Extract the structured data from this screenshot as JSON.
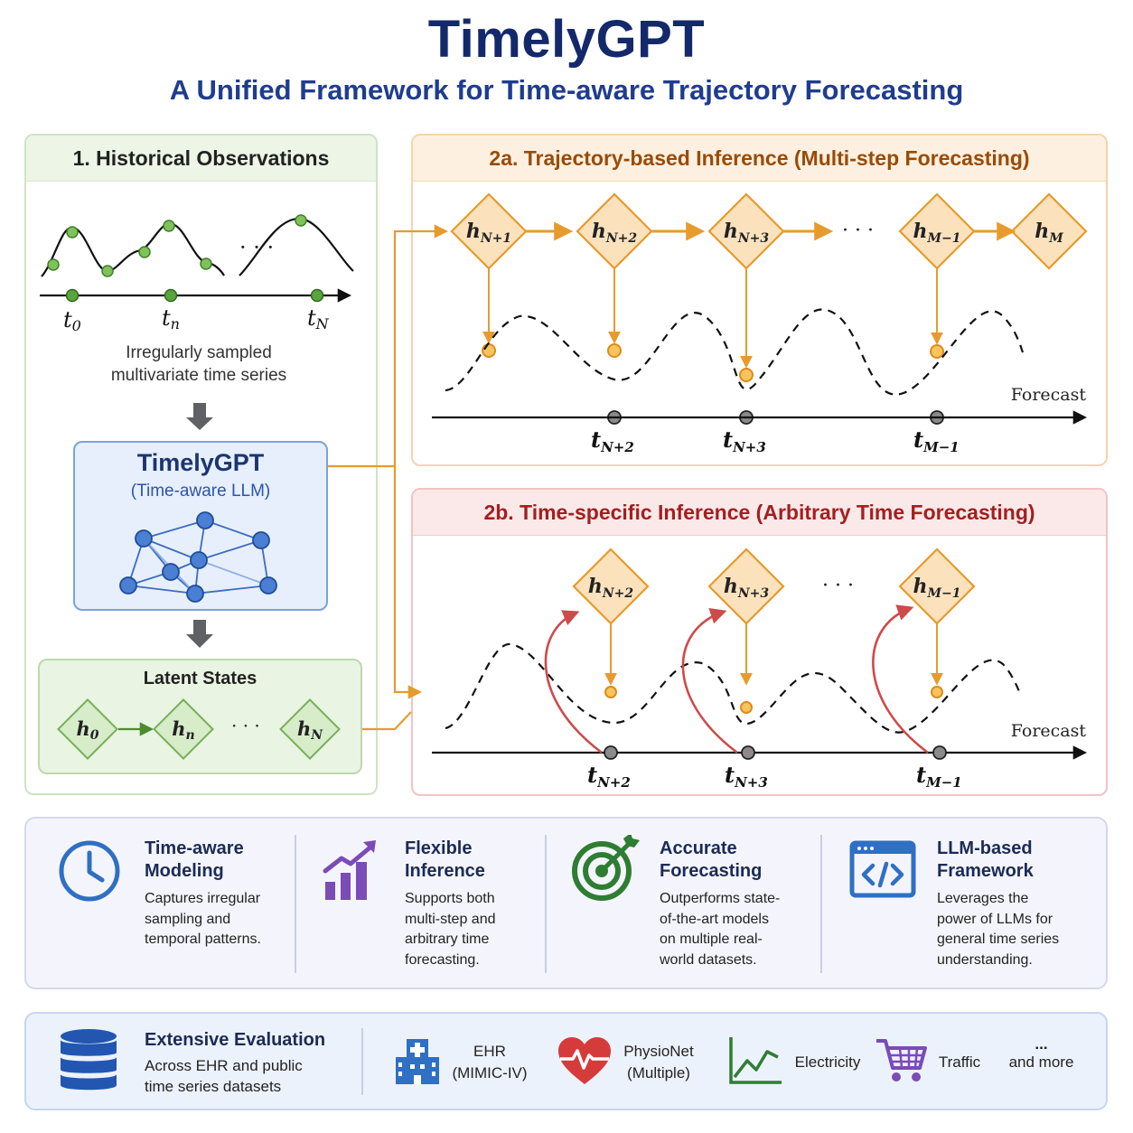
{
  "header": {
    "title": "TimelyGPT",
    "subtitle": "A Unified Framework for Time-aware Trajectory Forecasting"
  },
  "historical": {
    "heading": "1. Historical Observations",
    "ellipsis": "· · ·",
    "ticks": [
      {
        "base": "t",
        "sub": "0"
      },
      {
        "base": "t",
        "sub": "n"
      },
      {
        "base": "t",
        "sub": "N"
      }
    ],
    "caption_line1": "Irregularly sampled",
    "caption_line2": "multivariate time series"
  },
  "model": {
    "name": "TimelyGPT",
    "subtitle": "(Time-aware LLM)"
  },
  "latent": {
    "heading": "Latent States",
    "states": [
      {
        "base": "h",
        "sub": "0"
      },
      {
        "base": "h",
        "sub": "n"
      },
      {
        "base": "h",
        "sub": "N"
      }
    ],
    "ellipsis": "· · ·"
  },
  "trajectory": {
    "heading": "2a. Trajectory-based Inference (Multi-step Forecasting)",
    "states": [
      {
        "base": "h",
        "sub": "N+1"
      },
      {
        "base": "h",
        "sub": "N+2"
      },
      {
        "base": "h",
        "sub": "N+3"
      },
      {
        "base": "h",
        "sub": "M−1"
      },
      {
        "base": "h",
        "sub": "M"
      }
    ],
    "ellipsis": "· · ·",
    "forecast_label": "Forecast",
    "ticks": [
      {
        "base": "t",
        "sub": "N+2"
      },
      {
        "base": "t",
        "sub": "N+3"
      },
      {
        "base": "t",
        "sub": "M−1"
      }
    ]
  },
  "time_specific": {
    "heading": "2b. Time-specific Inference (Arbitrary Time Forecasting)",
    "states": [
      {
        "base": "h",
        "sub": "N+2"
      },
      {
        "base": "h",
        "sub": "N+3"
      },
      {
        "base": "h",
        "sub": "M−1"
      }
    ],
    "ellipsis": "· · ·",
    "forecast_label": "Forecast",
    "ticks": [
      {
        "base": "t",
        "sub": "N+2"
      },
      {
        "base": "t",
        "sub": "N+3"
      },
      {
        "base": "t",
        "sub": "M−1"
      }
    ]
  },
  "features": [
    {
      "icon": "clock-icon",
      "color": "#2f6fc4",
      "title_line1": "Time-aware",
      "title_line2": "Modeling",
      "desc": [
        "Captures irregular",
        "sampling and",
        "temporal patterns."
      ]
    },
    {
      "icon": "growth-chart-icon",
      "color": "#7b4bb8",
      "title_line1": "Flexible",
      "title_line2": "Inference",
      "desc": [
        "Supports both",
        "multi-step and",
        "arbitrary time",
        "forecasting."
      ]
    },
    {
      "icon": "target-icon",
      "color": "#2e7d32",
      "title_line1": "Accurate",
      "title_line2": "Forecasting",
      "desc": [
        "Outperforms state-",
        "of-the-art models",
        "on multiple real-",
        "world datasets."
      ]
    },
    {
      "icon": "code-window-icon",
      "color": "#2f6fc4",
      "title_line1": "LLM-based",
      "title_line2": "Framework",
      "desc": [
        "Leverages the",
        "power of LLMs for",
        "general time series",
        "understanding."
      ]
    }
  ],
  "evaluation": {
    "icon": "database-icon",
    "title": "Extensive Evaluation",
    "desc_line1": "Across EHR and public",
    "desc_line2": "time series datasets",
    "datasets": [
      {
        "icon": "hospital-icon",
        "line1": "EHR",
        "line2": "(MIMIC-IV)",
        "color": "#2f6fc4"
      },
      {
        "icon": "heartbeat-icon",
        "line1": "PhysioNet",
        "line2": "(Multiple)",
        "color": "#d63b3b"
      },
      {
        "icon": "line-chart-icon",
        "line1": "Electricity",
        "line2": "",
        "color": "#2e7d32"
      },
      {
        "icon": "cart-icon",
        "line1": "Traffic",
        "line2": "",
        "color": "#7b4bb8"
      },
      {
        "icon": "ellipsis-icon",
        "line1": "...",
        "line2": "and more",
        "color": "#333333"
      }
    ]
  },
  "colors": {
    "title": "#14296b",
    "orange": "#e79b2c",
    "red": "#cf4a4a",
    "green": "#5aa33e",
    "blue": "#2f5fb5"
  }
}
